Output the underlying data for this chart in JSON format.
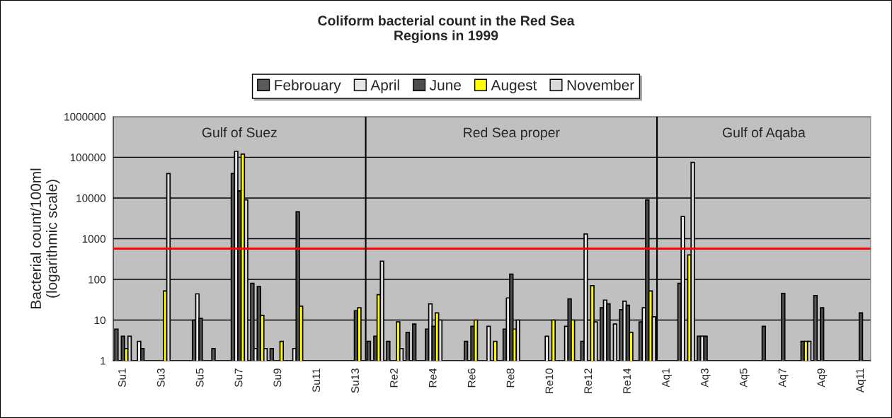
{
  "chart_data": {
    "type": "bar",
    "title": "Coliform bacterial count in the Red Sea\nRegions in 1999",
    "ylabel": "Bacterial count/100ml\n(logarithmic scale)",
    "categories": [
      "Su1",
      null,
      "Su3",
      null,
      "Su5",
      null,
      "Su7",
      null,
      "Su9",
      null,
      "Su11",
      null,
      "Su13",
      null,
      "Re2",
      null,
      "Re4",
      null,
      "Re6",
      null,
      "Re8",
      null,
      "Re10",
      null,
      "Re12",
      null,
      "Re14",
      null,
      "Aq1",
      null,
      "Aq3",
      null,
      "Aq5",
      null,
      "Aq7",
      null,
      "Aq9",
      null,
      "Aq11"
    ],
    "series": [
      {
        "name": "Febrouary",
        "color": "#5a5a5a",
        "values": [
          6,
          null,
          null,
          null,
          10,
          2,
          40000,
          80,
          2,
          null,
          null,
          null,
          null,
          3,
          3,
          5,
          6,
          null,
          3,
          null,
          6,
          null,
          null,
          null,
          3,
          20,
          18,
          9,
          null,
          80,
          4,
          null,
          null,
          null,
          null,
          null,
          40,
          null,
          null
        ]
      },
      {
        "name": "April",
        "color": "#e6e6e6",
        "values": [
          null,
          3,
          null,
          null,
          44,
          null,
          140000,
          2,
          null,
          2,
          null,
          null,
          null,
          null,
          null,
          null,
          25,
          null,
          null,
          7,
          35,
          null,
          4,
          7,
          1300,
          31,
          29,
          20,
          null,
          3500,
          4,
          null,
          null,
          null,
          null,
          null,
          null,
          null,
          null
        ]
      },
      {
        "name": "June",
        "color": "#4d4d4d",
        "values": [
          4,
          2,
          null,
          null,
          11,
          null,
          15000,
          67,
          null,
          4600,
          null,
          null,
          17,
          4,
          null,
          8,
          7,
          null,
          7,
          null,
          135,
          null,
          null,
          33,
          null,
          25,
          23,
          9000,
          null,
          null,
          4,
          null,
          null,
          7,
          45,
          3,
          20,
          null,
          15
        ]
      },
      {
        "name": "Augest",
        "color": "#ffff00",
        "values": [
          2,
          null,
          52,
          null,
          null,
          null,
          120000,
          13,
          3,
          22,
          null,
          null,
          20,
          42,
          9,
          null,
          15,
          null,
          10,
          3,
          6,
          null,
          10,
          10,
          70,
          null,
          5,
          52,
          null,
          400,
          null,
          null,
          null,
          null,
          null,
          3,
          null,
          null,
          null
        ]
      },
      {
        "name": "November",
        "color": "#d9d9d9",
        "values": [
          4,
          null,
          40000,
          null,
          null,
          null,
          9000,
          2,
          null,
          null,
          null,
          null,
          null,
          280,
          2,
          null,
          10,
          null,
          null,
          null,
          10,
          null,
          null,
          null,
          9,
          8,
          null,
          12,
          null,
          75000,
          null,
          null,
          null,
          null,
          null,
          3,
          null,
          null,
          null
        ]
      }
    ],
    "log": "y",
    "ylim": [
      1,
      1000000
    ],
    "yticks": [
      1,
      10,
      100,
      1000,
      10000,
      100000,
      1000000
    ],
    "grid": "y",
    "legend": "top",
    "ref_lines": [
      {
        "axis": "y",
        "value": 570,
        "color": "#ff0000"
      }
    ],
    "annotations": [
      "Gulf of Suez",
      "Red Sea proper",
      "Gulf of Aqaba"
    ]
  }
}
